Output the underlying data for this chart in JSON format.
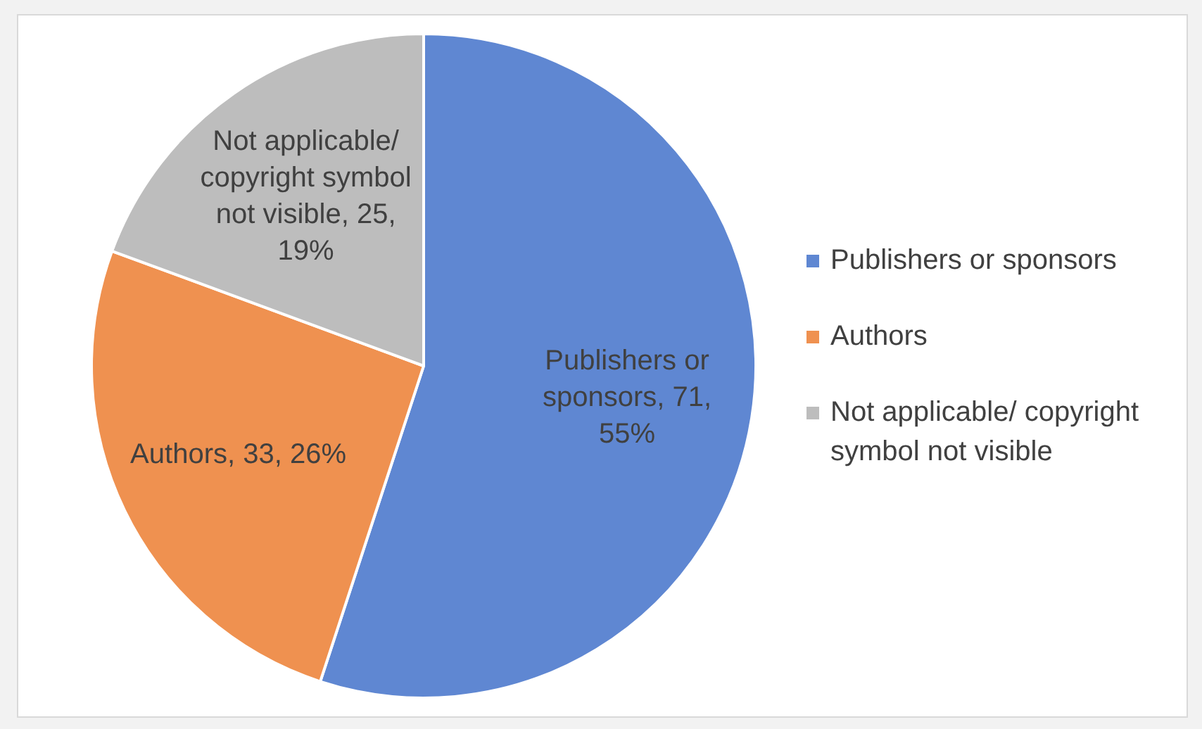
{
  "chart_data": {
    "type": "pie",
    "categories": [
      "Publishers or sponsors",
      "Authors",
      "Not applicable/ copyright symbol not visible"
    ],
    "values": [
      71,
      33,
      25
    ],
    "colors": [
      "#5f87d2",
      "#ef9150",
      "#bdbdbd"
    ],
    "value_labels": [
      "Publishers or sponsors, 71, 55%",
      "Authors, 33, 26%",
      "Not applicable/ copyright symbol not visible, 25, 19%"
    ],
    "legend": "right"
  }
}
